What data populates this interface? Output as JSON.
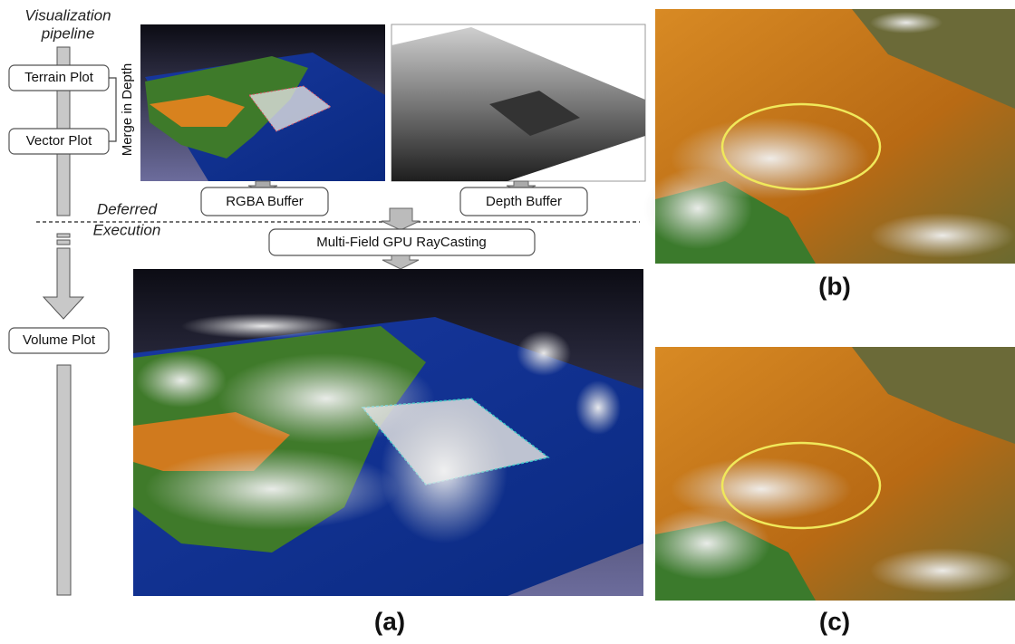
{
  "pipeline": {
    "title": [
      "Visualization",
      "pipeline"
    ],
    "stages": [
      "Terrain Plot",
      "Vector Plot",
      "Volume Plot"
    ],
    "merge_label": "Merge in Depth",
    "deferred_label": [
      "Deferred",
      "Execution"
    ]
  },
  "buffers": [
    "RGBA Buffer",
    "Depth Buffer"
  ],
  "raycasting": "Multi-Field GPU RayCasting",
  "panels": [
    "(a)",
    "(b)",
    "(c)"
  ]
}
